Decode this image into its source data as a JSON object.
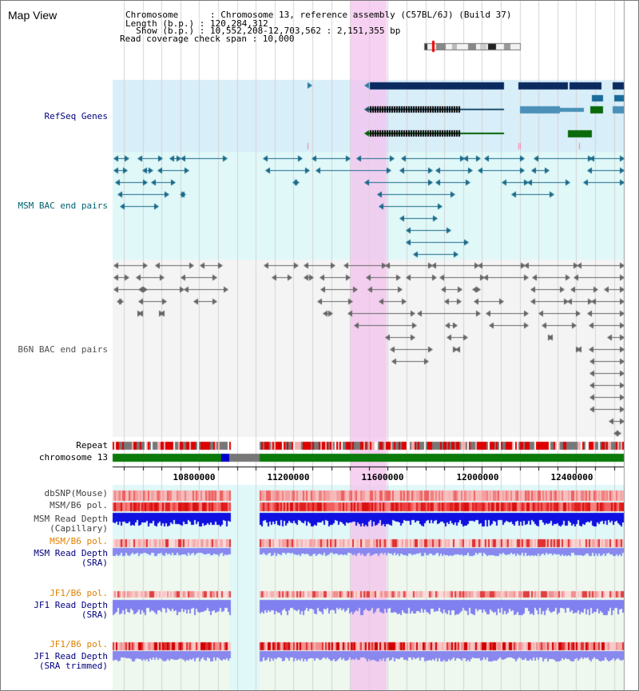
{
  "title": "Map View",
  "header": {
    "chromosome": "Chromosome      : Chromosome 13, reference assembly (C57BL/6J) (Build 37)",
    "length": "Length (b.p.) : 120,284,312",
    "show": "  Show (b.p.) : 10,552,208-12,703,562 : 2,151,355 bp",
    "coverage": "Read coverage check span : 10,000"
  },
  "tracks": {
    "refseq": "RefSeq Genes",
    "msm_bac": "MSM BAC end pairs",
    "b6n_bac": "B6N BAC end pairs",
    "repeat": "Repeat",
    "chromosome": "chromosome 13",
    "dbsnp": "dbSNP(Mouse)",
    "msm_b6_pol_1": "MSM/B6 pol.",
    "msm_depth_cap_1": "MSM Read Depth",
    "msm_depth_cap_2": "(Capillary)",
    "msm_b6_pol_2": "MSM/B6 pol.",
    "msm_depth_sra_1": "MSM Read Depth",
    "msm_depth_sra_2": "(SRA)",
    "jf1_b6_pol_1": "JF1/B6 pol.",
    "jf1_depth_sra_1": "JF1 Read Depth",
    "jf1_depth_sra_2": "(SRA)",
    "jf1_b6_pol_2": "JF1/B6 pol.",
    "jf1_depth_trim_1": "JF1 Read Depth",
    "jf1_depth_trim_2": "(SRA trimmed)"
  },
  "axis": {
    "ticks": [
      "10800000",
      "11200000",
      "11600000",
      "12000000",
      "12400000"
    ]
  },
  "colors": {
    "refseq_label": "#000080",
    "msm_label": "#006070",
    "b6n_label": "#505050",
    "pol_label_orange": "#e08000",
    "depth_label_blue": "#000080",
    "highlight": "#f4c2ee",
    "refseq_bg": "#d8eef9",
    "msm_bg": "#e0f8f8",
    "sra_bg": "#eef8ee"
  }
}
